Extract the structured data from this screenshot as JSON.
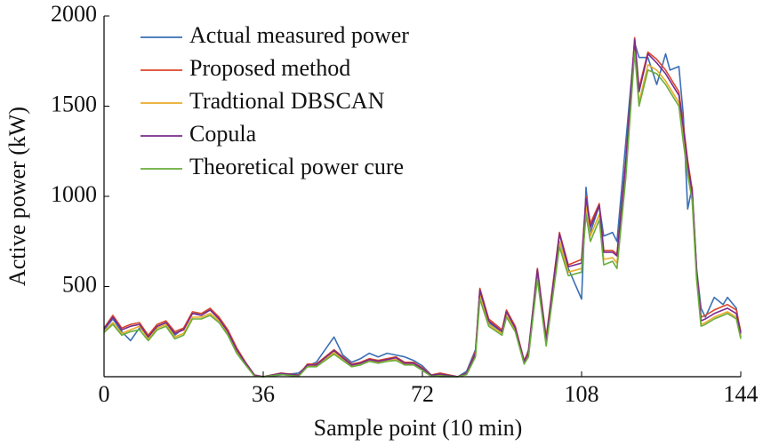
{
  "chart_data": {
    "type": "line",
    "xlabel": "Sample point (10 min)",
    "ylabel": "Active power (kW)",
    "x": [
      0,
      2,
      4,
      6,
      8,
      10,
      12,
      14,
      16,
      18,
      20,
      22,
      24,
      26,
      28,
      30,
      32,
      34,
      36,
      40,
      44,
      46,
      48,
      50,
      52,
      54,
      56,
      58,
      60,
      62,
      64,
      66,
      68,
      70,
      72,
      74,
      76,
      80,
      82,
      84,
      85,
      87,
      90,
      91,
      93,
      95,
      96,
      98,
      100,
      103,
      105,
      108,
      109,
      110,
      112,
      113,
      115,
      116,
      118,
      120,
      121,
      123,
      125,
      127,
      128,
      130,
      131,
      132,
      133,
      134,
      135,
      136,
      138,
      140,
      141,
      143,
      144
    ],
    "series": [
      {
        "name": "Actual measured power",
        "color": "#3a6fb5",
        "values": [
          260,
          320,
          250,
          200,
          270,
          230,
          280,
          300,
          230,
          270,
          350,
          350,
          370,
          320,
          250,
          150,
          80,
          10,
          0,
          10,
          20,
          60,
          80,
          150,
          220,
          120,
          80,
          100,
          130,
          110,
          130,
          120,
          110,
          90,
          60,
          10,
          0,
          0,
          30,
          150,
          470,
          300,
          250,
          360,
          270,
          80,
          150,
          600,
          200,
          750,
          600,
          430,
          1050,
          800,
          950,
          780,
          800,
          750,
          1300,
          1850,
          1770,
          1770,
          1620,
          1790,
          1700,
          1720,
          1450,
          930,
          1050,
          600,
          380,
          330,
          440,
          400,
          440,
          380,
          220
        ]
      },
      {
        "name": "Proposed method",
        "color": "#d9462a",
        "values": [
          270,
          340,
          270,
          290,
          300,
          230,
          290,
          310,
          250,
          270,
          360,
          350,
          380,
          330,
          260,
          160,
          80,
          10,
          0,
          20,
          10,
          70,
          70,
          110,
          150,
          110,
          70,
          80,
          100,
          90,
          100,
          110,
          80,
          80,
          50,
          10,
          20,
          0,
          20,
          140,
          490,
          320,
          260,
          370,
          280,
          90,
          140,
          600,
          220,
          800,
          620,
          650,
          1000,
          850,
          960,
          700,
          700,
          680,
          1200,
          1880,
          1600,
          1800,
          1760,
          1700,
          1660,
          1580,
          1400,
          1200,
          1040,
          600,
          330,
          340,
          370,
          390,
          400,
          370,
          250
        ]
      },
      {
        "name": "Tradtional DBSCAN",
        "color": "#e8ad2a",
        "values": [
          250,
          300,
          240,
          260,
          280,
          210,
          270,
          290,
          220,
          240,
          330,
          330,
          350,
          310,
          240,
          140,
          70,
          5,
          0,
          15,
          5,
          60,
          60,
          95,
          135,
          95,
          60,
          70,
          90,
          80,
          90,
          95,
          70,
          70,
          40,
          5,
          10,
          0,
          15,
          120,
          450,
          290,
          240,
          340,
          260,
          80,
          120,
          560,
          180,
          750,
          580,
          600,
          940,
          780,
          900,
          650,
          660,
          630,
          1150,
          1830,
          1520,
          1730,
          1700,
          1640,
          1600,
          1520,
          1320,
          1150,
          1000,
          560,
          290,
          300,
          330,
          350,
          360,
          330,
          220
        ]
      },
      {
        "name": "Copula",
        "color": "#7a2b8c",
        "values": [
          265,
          330,
          260,
          280,
          290,
          220,
          280,
          300,
          240,
          260,
          350,
          340,
          370,
          320,
          250,
          150,
          75,
          8,
          0,
          18,
          8,
          65,
          65,
          105,
          145,
          105,
          65,
          75,
          95,
          85,
          95,
          105,
          75,
          75,
          45,
          8,
          15,
          0,
          18,
          130,
          480,
          310,
          250,
          360,
          270,
          85,
          130,
          590,
          200,
          790,
          610,
          630,
          990,
          830,
          950,
          690,
          690,
          670,
          1190,
          1870,
          1580,
          1790,
          1740,
          1680,
          1640,
          1560,
          1380,
          1180,
          1020,
          590,
          310,
          320,
          350,
          370,
          380,
          350,
          240
        ]
      },
      {
        "name": "Theoretical power cure",
        "color": "#6aad3c",
        "values": [
          245,
          290,
          230,
          250,
          260,
          200,
          260,
          280,
          210,
          230,
          320,
          320,
          340,
          300,
          230,
          130,
          65,
          3,
          0,
          12,
          3,
          55,
          55,
          90,
          125,
          90,
          55,
          65,
          85,
          75,
          85,
          90,
          65,
          65,
          35,
          3,
          5,
          0,
          12,
          110,
          430,
          280,
          230,
          330,
          250,
          70,
          110,
          540,
          170,
          720,
          560,
          580,
          900,
          750,
          870,
          620,
          640,
          600,
          1100,
          1800,
          1500,
          1700,
          1680,
          1620,
          1580,
          1500,
          1300,
          1120,
          980,
          540,
          280,
          290,
          320,
          340,
          350,
          320,
          210
        ]
      }
    ],
    "xlim": [
      0,
      144
    ],
    "xticks": [
      0,
      36,
      72,
      108,
      144
    ],
    "ylim": [
      0,
      2000
    ],
    "yticks": [
      500,
      1000,
      1500,
      2000
    ],
    "legend": "upper left"
  }
}
